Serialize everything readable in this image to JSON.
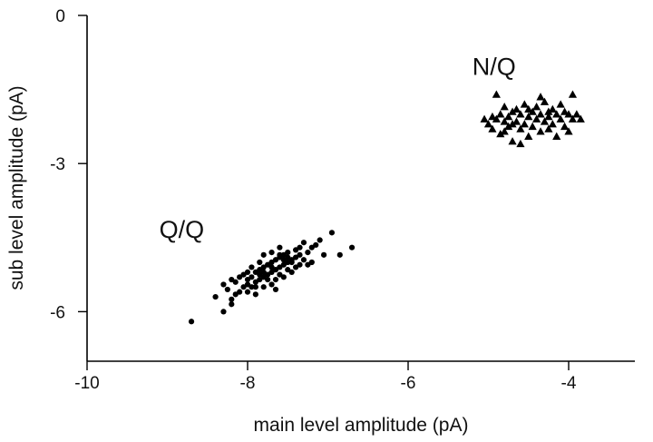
{
  "chart_data": {
    "type": "scatter",
    "xlabel": "main level amplitude (pA)",
    "ylabel": "sub level amplitude (pA)",
    "xlim": [
      -10,
      -3
    ],
    "ylim": [
      -7,
      0
    ],
    "xticks": [
      -10,
      -8,
      -6,
      -4
    ],
    "yticks": [
      0,
      -3,
      -6
    ],
    "grid": false,
    "annotations": [
      {
        "text": "Q/Q",
        "x": -9.1,
        "y": -4.5
      },
      {
        "text": "N/Q",
        "x": -5.2,
        "y": -1.2
      }
    ],
    "series": [
      {
        "marker": "circle",
        "color": "#000000",
        "points": [
          [
            -8.7,
            -6.2
          ],
          [
            -8.3,
            -6.0
          ],
          [
            -8.2,
            -5.85
          ],
          [
            -8.2,
            -5.75
          ],
          [
            -8.25,
            -5.55
          ],
          [
            -8.1,
            -5.6
          ],
          [
            -8.15,
            -5.4
          ],
          [
            -8.05,
            -5.5
          ],
          [
            -8.0,
            -5.6
          ],
          [
            -8.0,
            -5.45
          ],
          [
            -8.0,
            -5.35
          ],
          [
            -7.95,
            -5.5
          ],
          [
            -7.95,
            -5.3
          ],
          [
            -7.9,
            -5.4
          ],
          [
            -7.9,
            -5.2
          ],
          [
            -7.85,
            -5.35
          ],
          [
            -7.85,
            -5.15
          ],
          [
            -7.8,
            -5.3
          ],
          [
            -7.8,
            -5.1
          ],
          [
            -7.75,
            -5.25
          ],
          [
            -7.75,
            -5.05
          ],
          [
            -7.7,
            -5.2
          ],
          [
            -7.7,
            -5.0
          ],
          [
            -7.65,
            -5.15
          ],
          [
            -7.65,
            -4.95
          ],
          [
            -7.6,
            -5.1
          ],
          [
            -7.6,
            -4.9
          ],
          [
            -7.55,
            -5.05
          ],
          [
            -7.55,
            -4.85
          ],
          [
            -7.5,
            -5.0
          ],
          [
            -7.5,
            -4.8
          ],
          [
            -7.45,
            -4.95
          ],
          [
            -7.4,
            -4.9
          ],
          [
            -7.4,
            -4.75
          ],
          [
            -7.35,
            -4.85
          ],
          [
            -7.3,
            -4.95
          ],
          [
            -7.25,
            -4.8
          ],
          [
            -7.2,
            -4.7
          ],
          [
            -7.2,
            -5.0
          ],
          [
            -7.1,
            -4.55
          ],
          [
            -7.05,
            -4.85
          ],
          [
            -6.95,
            -4.4
          ],
          [
            -6.85,
            -4.85
          ],
          [
            -6.7,
            -4.7
          ],
          [
            -7.15,
            -4.65
          ],
          [
            -7.3,
            -4.6
          ],
          [
            -7.6,
            -4.7
          ],
          [
            -7.7,
            -5.45
          ],
          [
            -7.65,
            -5.55
          ],
          [
            -7.8,
            -5.5
          ],
          [
            -7.9,
            -5.65
          ],
          [
            -8.05,
            -5.25
          ],
          [
            -8.3,
            -5.45
          ],
          [
            -8.4,
            -5.7
          ],
          [
            -7.45,
            -5.2
          ],
          [
            -7.4,
            -5.1
          ],
          [
            -7.35,
            -5.05
          ],
          [
            -7.5,
            -5.15
          ],
          [
            -7.8,
            -4.85
          ],
          [
            -7.7,
            -4.8
          ],
          [
            -7.95,
            -5.1
          ],
          [
            -8.1,
            -5.3
          ],
          [
            -7.55,
            -4.95
          ],
          [
            -7.85,
            -5.0
          ],
          [
            -7.75,
            -5.35
          ],
          [
            -7.6,
            -5.25
          ],
          [
            -7.9,
            -5.5
          ],
          [
            -8.0,
            -5.2
          ],
          [
            -7.35,
            -4.7
          ],
          [
            -7.25,
            -5.05
          ],
          [
            -7.65,
            -5.35
          ],
          [
            -7.85,
            -5.25
          ],
          [
            -7.45,
            -5.0
          ],
          [
            -7.55,
            -5.3
          ],
          [
            -8.2,
            -5.35
          ],
          [
            -7.7,
            -5.1
          ],
          [
            -7.6,
            -4.85
          ],
          [
            -7.8,
            -5.2
          ],
          [
            -8.15,
            -5.65
          ],
          [
            -7.5,
            -4.9
          ]
        ]
      },
      {
        "marker": "triangle",
        "color": "#000000",
        "points": [
          [
            -5.05,
            -2.1
          ],
          [
            -5.0,
            -2.2
          ],
          [
            -4.95,
            -2.3
          ],
          [
            -4.9,
            -1.6
          ],
          [
            -4.9,
            -2.1
          ],
          [
            -4.85,
            -2.0
          ],
          [
            -4.85,
            -2.4
          ],
          [
            -4.8,
            -2.15
          ],
          [
            -4.8,
            -1.85
          ],
          [
            -4.75,
            -2.05
          ],
          [
            -4.75,
            -2.25
          ],
          [
            -4.7,
            -1.95
          ],
          [
            -4.7,
            -2.55
          ],
          [
            -4.65,
            -2.15
          ],
          [
            -4.65,
            -1.9
          ],
          [
            -4.6,
            -2.3
          ],
          [
            -4.6,
            -2.0
          ],
          [
            -4.55,
            -2.2
          ],
          [
            -4.55,
            -1.8
          ],
          [
            -4.5,
            -2.05
          ],
          [
            -4.5,
            -2.45
          ],
          [
            -4.45,
            -1.95
          ],
          [
            -4.45,
            -2.25
          ],
          [
            -4.4,
            -2.1
          ],
          [
            -4.4,
            -1.85
          ],
          [
            -4.35,
            -2.0
          ],
          [
            -4.35,
            -2.35
          ],
          [
            -4.3,
            -2.15
          ],
          [
            -4.3,
            -1.75
          ],
          [
            -4.25,
            -2.05
          ],
          [
            -4.25,
            -2.3
          ],
          [
            -4.2,
            -1.9
          ],
          [
            -4.2,
            -2.2
          ],
          [
            -4.15,
            -2.0
          ],
          [
            -4.15,
            -2.45
          ],
          [
            -4.1,
            -2.1
          ],
          [
            -4.1,
            -1.8
          ],
          [
            -4.05,
            -2.25
          ],
          [
            -4.0,
            -2.0
          ],
          [
            -4.0,
            -2.35
          ],
          [
            -3.95,
            -1.6
          ],
          [
            -3.95,
            -2.1
          ],
          [
            -3.9,
            -2.0
          ],
          [
            -3.85,
            -2.1
          ],
          [
            -4.6,
            -2.6
          ],
          [
            -4.35,
            -1.65
          ],
          [
            -4.95,
            -2.05
          ],
          [
            -4.8,
            -2.35
          ],
          [
            -4.5,
            -1.9
          ],
          [
            -4.25,
            -1.95
          ],
          [
            -4.05,
            -1.95
          ],
          [
            -4.7,
            -2.2
          ]
        ]
      }
    ]
  }
}
